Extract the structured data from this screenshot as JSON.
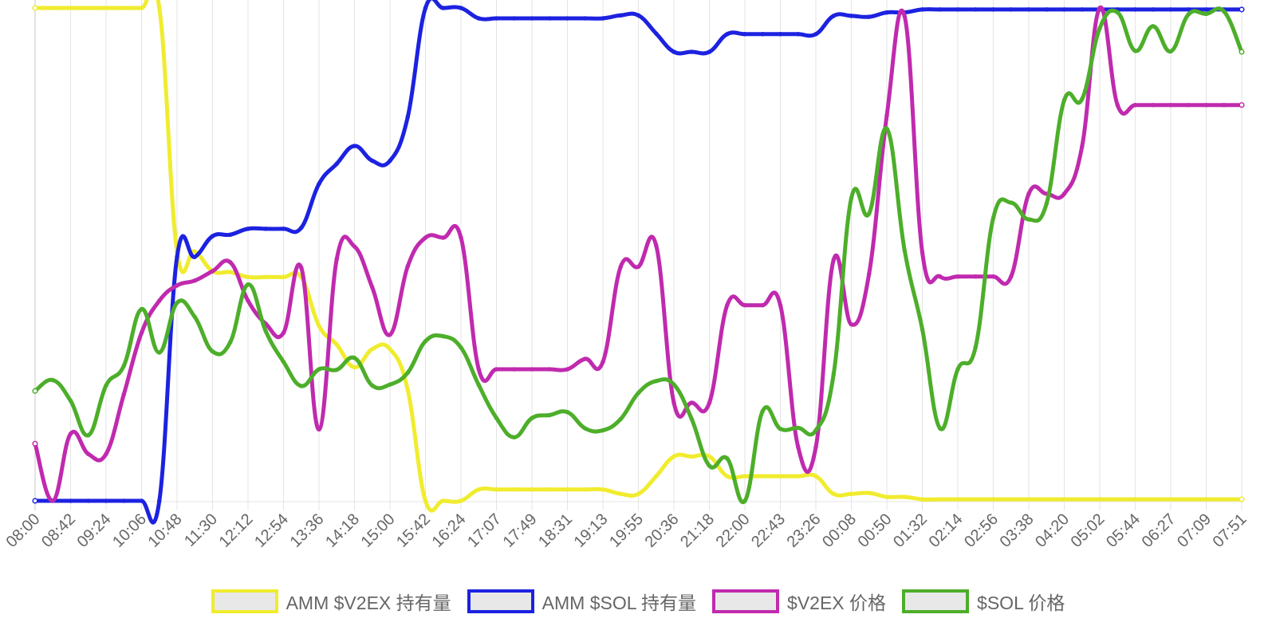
{
  "chart_data": {
    "type": "line",
    "x": [
      "08:00",
      "08:21",
      "08:42",
      "09:03",
      "09:24",
      "09:45",
      "10:06",
      "10:27",
      "10:48",
      "11:09",
      "11:30",
      "11:51",
      "12:12",
      "12:33",
      "12:54",
      "13:15",
      "13:36",
      "13:57",
      "14:18",
      "14:39",
      "15:00",
      "15:21",
      "15:42",
      "16:03",
      "16:24",
      "16:45",
      "17:07",
      "17:28",
      "17:49",
      "18:10",
      "18:31",
      "18:52",
      "19:13",
      "19:34",
      "19:55",
      "20:16",
      "20:36",
      "20:57",
      "21:18",
      "21:39",
      "22:00",
      "22:21",
      "22:43",
      "23:04",
      "23:26",
      "23:47",
      "00:08",
      "00:29",
      "00:50",
      "01:11",
      "01:32",
      "01:53",
      "02:14",
      "02:35",
      "02:56",
      "03:17",
      "03:38",
      "03:59",
      "04:20",
      "04:41",
      "05:02",
      "05:23",
      "05:44",
      "06:05",
      "06:27",
      "06:48",
      "07:09",
      "07:30",
      "07:51"
    ],
    "x_tick_labels": [
      "08:00",
      "08:42",
      "09:24",
      "10:06",
      "10:48",
      "11:30",
      "12:12",
      "12:54",
      "13:36",
      "14:18",
      "15:00",
      "15:42",
      "16:24",
      "17:07",
      "17:49",
      "18:31",
      "19:13",
      "19:55",
      "20:36",
      "21:18",
      "22:00",
      "22:43",
      "23:26",
      "00:08",
      "00:50",
      "01:32",
      "02:14",
      "02:56",
      "03:38",
      "04:20",
      "05:02",
      "05:44",
      "06:27",
      "07:09",
      "07:51"
    ],
    "ylim": [
      0,
      100
    ],
    "series": [
      {
        "name": "AMM $V2EX 持有量",
        "color": "#f0ec2e",
        "values": [
          100,
          100,
          100,
          100,
          100,
          100,
          100,
          100,
          50.6,
          50.6,
          46.6,
          46.4,
          45.4,
          45.4,
          45.4,
          45.4,
          35.5,
          31.7,
          27.1,
          30.8,
          30.8,
          22.5,
          0,
          0,
          0,
          2.3,
          2.3,
          2.3,
          2.3,
          2.3,
          2.3,
          2.3,
          2.3,
          1.4,
          1.4,
          5,
          9,
          9,
          9,
          5,
          5,
          5,
          5,
          5,
          5,
          1.4,
          1.4,
          1.6,
          0.8,
          0.8,
          0.3,
          0.3,
          0.3,
          0.3,
          0.3,
          0.3,
          0.3,
          0.3,
          0.3,
          0.3,
          0.3,
          0.3,
          0.3,
          0.3,
          0.3,
          0.3,
          0.3,
          0.3,
          0.3
        ]
      },
      {
        "name": "AMM $SOL 持有量",
        "color": "#1c22e0",
        "values": [
          0,
          0,
          0,
          0,
          0,
          0,
          0,
          0,
          49.5,
          49.5,
          53.7,
          54,
          55.2,
          55.2,
          55.2,
          55.4,
          64.3,
          68.4,
          72,
          69,
          69,
          77.9,
          100,
          100,
          100,
          97.9,
          97.9,
          97.9,
          97.9,
          97.9,
          97.9,
          97.9,
          97.9,
          98.5,
          98.5,
          94.8,
          91.1,
          91.1,
          91.1,
          94.7,
          94.7,
          94.7,
          94.7,
          94.7,
          94.7,
          98.4,
          98.4,
          98.2,
          99.1,
          99.1,
          99.7,
          99.7,
          99.7,
          99.7,
          99.7,
          99.7,
          99.7,
          99.7,
          99.7,
          99.7,
          99.7,
          99.7,
          99.7,
          99.7,
          99.7,
          99.7,
          99.7,
          99.7,
          99.7
        ]
      },
      {
        "name": "$V2EX 价格",
        "color": "#c02aae",
        "values": [
          11.6,
          0,
          13.6,
          9.5,
          9.5,
          21.6,
          34.1,
          40.6,
          43.7,
          44.7,
          46.6,
          48.4,
          40.6,
          35.9,
          34.1,
          47.3,
          14.5,
          49.1,
          51.6,
          43.3,
          33.7,
          47.6,
          53.4,
          53.4,
          53.4,
          26.7,
          26.7,
          26.7,
          26.7,
          26.7,
          26.7,
          28.8,
          28.2,
          47.5,
          47.5,
          51.8,
          19.9,
          19.9,
          19.9,
          39.7,
          39.7,
          39.7,
          39.7,
          10.9,
          10.9,
          48.9,
          35.8,
          46.1,
          78.2,
          98.3,
          50.4,
          45.5,
          45.5,
          45.5,
          45.5,
          45.5,
          62.3,
          62.3,
          62.3,
          71.9,
          100,
          80.3,
          80.3,
          80.3,
          80.3,
          80.3,
          80.3,
          80.3,
          80.3
        ]
      },
      {
        "name": "$SOL 价格",
        "color": "#4dae2a",
        "values": [
          22.3,
          24.5,
          20.3,
          13.3,
          23.4,
          27.4,
          38.9,
          30.1,
          40.2,
          37.3,
          30.3,
          32.2,
          43.9,
          34.4,
          28.2,
          23.3,
          26.7,
          26.6,
          29,
          23.4,
          23.6,
          26,
          32.4,
          33.4,
          31.1,
          23.5,
          16.8,
          12.9,
          16.8,
          17.4,
          18,
          14.7,
          14.3,
          16.6,
          21.9,
          24.3,
          23.6,
          16.6,
          7.1,
          8.6,
          0,
          18.2,
          14.6,
          14.8,
          14.3,
          25.7,
          61.4,
          58.3,
          75.5,
          50.8,
          34.8,
          14.7,
          26.7,
          31.2,
          57.4,
          60.5,
          57.1,
          60.3,
          81.3,
          81.5,
          95.9,
          99.1,
          91.3,
          96.3,
          91.2,
          98.7,
          98.8,
          99.3,
          91.1
        ]
      }
    ],
    "legend_position": "bottom",
    "grid": "vertical"
  }
}
